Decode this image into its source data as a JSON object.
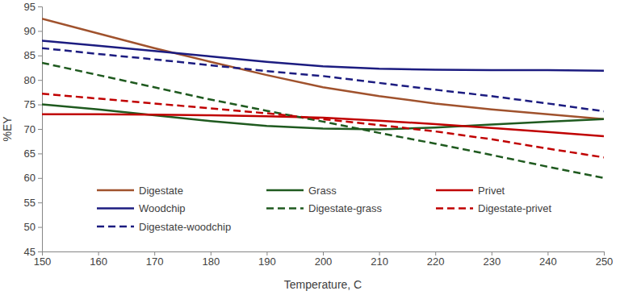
{
  "chart_data": {
    "type": "line",
    "x_label": "Temperature, C",
    "y_label": "%EY",
    "x": [
      150,
      160,
      170,
      180,
      190,
      200,
      210,
      220,
      230,
      240,
      250
    ],
    "series": [
      {
        "name": "Digestate",
        "color": "#a0522d",
        "line_style": "solid",
        "values": [
          92.5,
          89.5,
          86.5,
          83.7,
          81,
          78.5,
          76.7,
          75.2,
          74,
          73,
          72
        ]
      },
      {
        "name": "Grass",
        "color": "#1f5a1f",
        "line_style": "solid",
        "values": [
          75,
          74,
          72.8,
          71.6,
          70.6,
          70.1,
          69.9,
          70.3,
          70.9,
          71.5,
          72
        ]
      },
      {
        "name": "Privet",
        "color": "#c00000",
        "line_style": "solid",
        "values": [
          73,
          73,
          72.9,
          72.8,
          72.6,
          72.3,
          71.7,
          71,
          70.2,
          69.4,
          68.5
        ]
      },
      {
        "name": "Woodchip",
        "color": "#1c1c80",
        "line_style": "solid",
        "values": [
          88,
          87,
          85.9,
          84.8,
          83.7,
          82.8,
          82.3,
          82.1,
          82,
          82,
          81.9
        ]
      },
      {
        "name": "Digestate-grass",
        "color": "#1f5a1f",
        "line_style": "dashed",
        "values": [
          83.5,
          81,
          78.5,
          76,
          73.7,
          71.5,
          69.2,
          67,
          64.7,
          62.3,
          60
        ]
      },
      {
        "name": "Digestate-privet",
        "color": "#c00000",
        "line_style": "dashed",
        "values": [
          77.2,
          76.2,
          75.2,
          74.2,
          73.2,
          72,
          70.8,
          69.5,
          67.9,
          66,
          64.2
        ]
      },
      {
        "name": "Digestate-woodchip",
        "color": "#1c1c80",
        "line_style": "dashed",
        "values": [
          86.5,
          85.3,
          84.2,
          83,
          81.8,
          80.8,
          79.4,
          78,
          76.7,
          75.2,
          73.6
        ]
      }
    ],
    "xlim": [
      150,
      250
    ],
    "xticks": [
      150,
      160,
      170,
      180,
      190,
      200,
      210,
      220,
      230,
      240,
      250
    ],
    "ylim": [
      45,
      95
    ],
    "yticks": [
      45,
      50,
      55,
      60,
      65,
      70,
      75,
      80,
      85,
      90,
      95
    ],
    "grid": false,
    "legend": "bottom"
  }
}
